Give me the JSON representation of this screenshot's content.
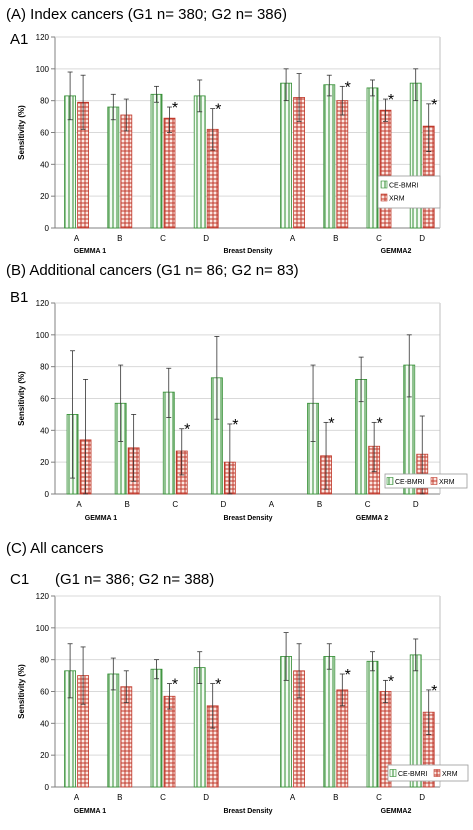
{
  "headings": {
    "a": "(A) Index cancers (G1 n= 380; G2 n= 386)",
    "a1": "A1",
    "b": "(B) Additional cancers (G1 n= 86; G2 n= 83)",
    "b1": "B1",
    "c": "(C) All cancers",
    "c1": "C1",
    "c1_note": "(G1 n= 386; G2 n= 388)"
  },
  "colors": {
    "ce_bmri": "#2e8b2e",
    "xrm": "#c0392b",
    "axis": "#808080"
  },
  "chart_data": [
    {
      "type": "bar",
      "ylabel": "Sensitivity (%)",
      "xlabel": "Breast Density",
      "ylim": [
        0,
        120
      ],
      "yticks": [
        "0",
        "20",
        "40",
        "60",
        "80",
        "100",
        "120"
      ],
      "categories": [
        "A",
        "B",
        "C",
        "D",
        "",
        "A",
        "B",
        "C",
        "D"
      ],
      "groups": [
        "GEMMA 1",
        "GEMMA2"
      ],
      "legend": [
        "CE-BMRI",
        "XRM"
      ],
      "legend_position": "right",
      "series": [
        {
          "name": "CE-BMRI",
          "values": [
            83,
            76,
            84,
            83,
            null,
            91,
            90,
            88,
            91
          ],
          "err_low": [
            68,
            68,
            79,
            73,
            null,
            80,
            83,
            83,
            80
          ],
          "err_high": [
            98,
            84,
            89,
            93,
            null,
            100,
            96,
            93,
            100
          ]
        },
        {
          "name": "XRM",
          "values": [
            79,
            71,
            69,
            62,
            null,
            82,
            80,
            74,
            64
          ],
          "err_low": [
            62,
            61,
            60,
            49,
            null,
            67,
            71,
            67,
            48
          ],
          "err_high": [
            96,
            81,
            76,
            75,
            null,
            97,
            89,
            81,
            78
          ]
        }
      ],
      "significant": [
        false,
        false,
        true,
        true,
        false,
        false,
        true,
        true,
        true
      ]
    },
    {
      "type": "bar",
      "ylabel": "Sensitivity (%)",
      "xlabel": "Breast Density",
      "ylim": [
        0,
        120
      ],
      "yticks": [
        "0",
        "20",
        "40",
        "60",
        "80",
        "100",
        "120"
      ],
      "categories": [
        "A",
        "B",
        "C",
        "D",
        "A",
        "B",
        "C",
        "D"
      ],
      "groups": [
        "GEMMA 1",
        "GEMMA 2"
      ],
      "legend": [
        "CE-BMRI",
        "XRM"
      ],
      "legend_position": "bottom-right",
      "series": [
        {
          "name": "CE-BMRI",
          "values": [
            50,
            57,
            64,
            73,
            null,
            57,
            72,
            81
          ],
          "err_low": [
            10,
            33,
            48,
            47,
            null,
            33,
            58,
            61
          ],
          "err_high": [
            90,
            81,
            79,
            99,
            null,
            81,
            86,
            100
          ]
        },
        {
          "name": "XRM",
          "values": [
            34,
            29,
            27,
            20,
            null,
            24,
            30,
            25
          ],
          "err_low": [
            0,
            8,
            12,
            0,
            null,
            3,
            14,
            0
          ],
          "err_high": [
            72,
            50,
            41,
            44,
            null,
            45,
            45,
            49
          ]
        }
      ],
      "significant": [
        false,
        false,
        true,
        true,
        false,
        true,
        true,
        false
      ]
    },
    {
      "type": "bar",
      "ylabel": "Sensitivity (%)",
      "xlabel": "Breast Density",
      "ylim": [
        0,
        120
      ],
      "yticks": [
        "0",
        "20",
        "40",
        "60",
        "80",
        "100",
        "120"
      ],
      "categories": [
        "A",
        "B",
        "C",
        "D",
        "",
        "A",
        "B",
        "C",
        "D"
      ],
      "groups": [
        "GEMMA 1",
        "GEMMA2"
      ],
      "legend": [
        "CE-BMRI",
        "XRM"
      ],
      "legend_position": "bottom-right",
      "series": [
        {
          "name": "CE-BMRI",
          "values": [
            73,
            71,
            74,
            75,
            null,
            82,
            82,
            79,
            83
          ],
          "err_low": [
            56,
            61,
            68,
            65,
            null,
            67,
            74,
            73,
            73
          ],
          "err_high": [
            90,
            81,
            80,
            85,
            null,
            97,
            90,
            85,
            93
          ]
        },
        {
          "name": "XRM",
          "values": [
            70,
            63,
            57,
            51,
            null,
            73,
            61,
            60,
            47
          ],
          "err_low": [
            52,
            53,
            49,
            37,
            null,
            56,
            51,
            53,
            33
          ],
          "err_high": [
            88,
            73,
            65,
            65,
            null,
            90,
            71,
            67,
            61
          ]
        }
      ],
      "significant": [
        false,
        false,
        true,
        true,
        false,
        false,
        true,
        true,
        true
      ]
    }
  ]
}
